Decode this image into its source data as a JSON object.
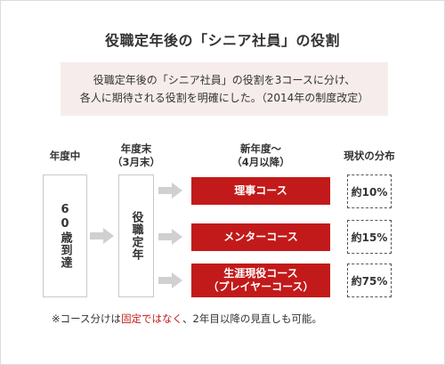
{
  "title": "役職定年後の「シニア社員」の役割",
  "summary": {
    "line1": "役職定年後の「シニア社員」の役割を3コースに分け、",
    "line2": "各人に期待される役割を明確にした。（2014年の制度改定）"
  },
  "columns": {
    "col1": "年度中",
    "col2_line1": "年度末",
    "col2_line2": "（3月末）",
    "col3_line1": "新年度～",
    "col3_line2": "（4月以降）",
    "col4": "現状の分布"
  },
  "stages": {
    "stage1": "60歳到達",
    "stage2": "役職定年"
  },
  "courses": [
    {
      "name_line1": "理事コース",
      "name_line2": "",
      "share": "約10%"
    },
    {
      "name_line1": "メンターコース",
      "name_line2": "",
      "share": "約15%"
    },
    {
      "name_line1": "生涯現役コース",
      "name_line2": "（プレイヤーコース）",
      "share": "約75%"
    }
  ],
  "footnote": {
    "prefix": "※コース分けは",
    "highlight": "固定ではなく",
    "suffix": "、2年目以降の見直しも可能。"
  },
  "colors": {
    "accent_red": "#c21a1a",
    "summary_bg": "#f7ecec",
    "arrow_gray": "#d0d0d0"
  }
}
